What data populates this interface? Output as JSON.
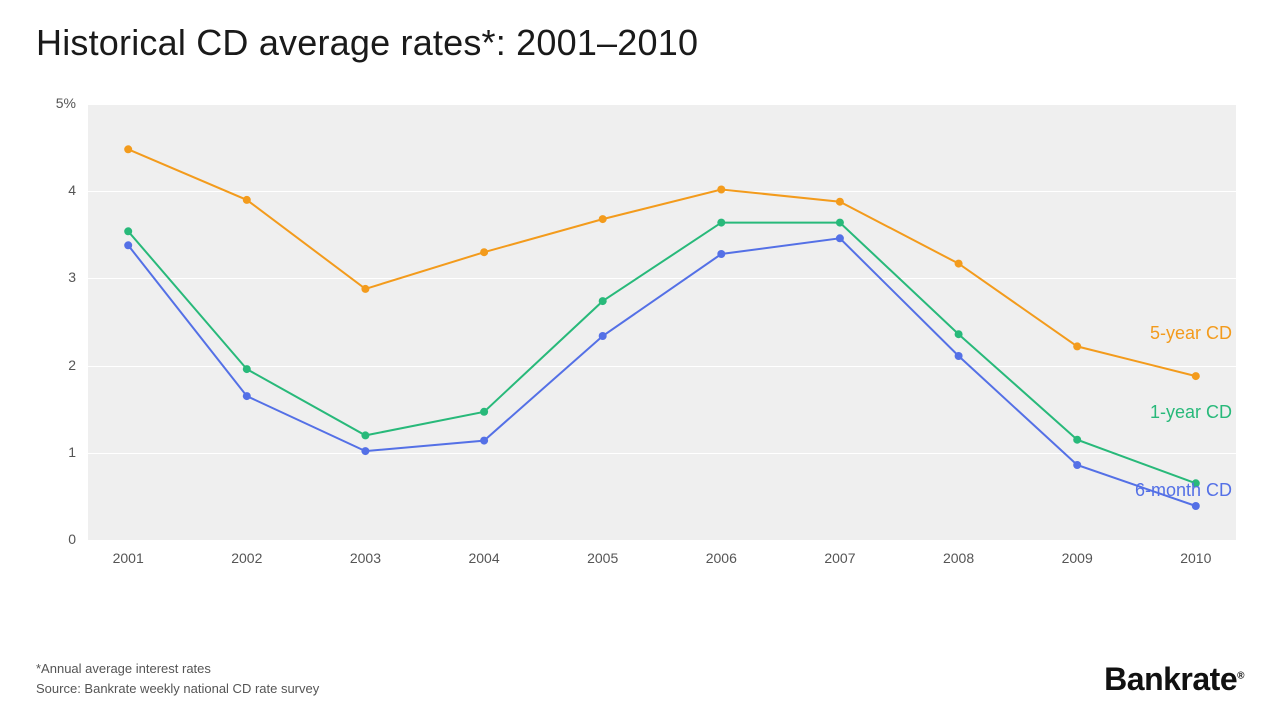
{
  "title": "Historical CD average rates*: 2001–2010",
  "chart": {
    "type": "line",
    "background_color": "#ffffff",
    "plot_background_color": "#efefef",
    "grid_color": "#ffffff",
    "axis_label_color": "#555555",
    "axis_label_fontsize": 14,
    "title_fontsize": 36,
    "series_label_fontsize": 18,
    "line_width": 2,
    "marker_radius": 4,
    "x": {
      "categories": [
        "2001",
        "2002",
        "2003",
        "2004",
        "2005",
        "2006",
        "2007",
        "2008",
        "2009",
        "2010"
      ]
    },
    "y": {
      "min": 0,
      "max": 5,
      "tick_step": 1,
      "tick_labels": [
        "0",
        "1",
        "2",
        "3",
        "4",
        "5%"
      ]
    },
    "series": [
      {
        "key": "five_year",
        "label": "5-year CD",
        "color": "#f39b1c",
        "values": [
          4.48,
          3.9,
          2.88,
          3.3,
          3.68,
          4.02,
          3.88,
          3.17,
          2.22,
          1.88
        ]
      },
      {
        "key": "one_year",
        "label": "1-year CD",
        "color": "#28b97a",
        "values": [
          3.54,
          1.96,
          1.2,
          1.47,
          2.74,
          3.64,
          3.64,
          2.36,
          1.15,
          0.65
        ]
      },
      {
        "key": "six_month",
        "label": "6-month CD",
        "color": "#5470e6",
        "values": [
          3.38,
          1.65,
          1.02,
          1.14,
          2.34,
          3.28,
          3.46,
          2.11,
          0.86,
          0.39
        ]
      }
    ],
    "series_label_positions": {
      "five_year": {
        "right_offset": -8,
        "y_value": 2.35
      },
      "one_year": {
        "right_offset": -8,
        "y_value": 1.45
      },
      "six_month": {
        "right_offset": -8,
        "y_value": 0.55
      }
    }
  },
  "footer": {
    "note": "*Annual average interest rates",
    "source": "Source: Bankrate weekly national CD rate survey"
  },
  "brand": "Bankrate"
}
